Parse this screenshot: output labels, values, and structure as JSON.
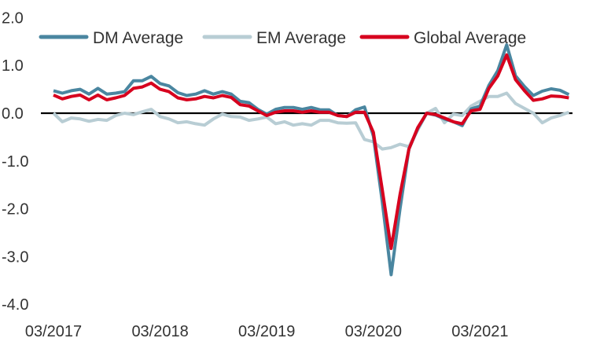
{
  "chart_data": {
    "type": "line",
    "title": "",
    "xlabel": "",
    "ylabel": "",
    "ylim": [
      -4.0,
      2.0
    ],
    "yticks": [
      "2.0",
      "1.0",
      "0.0",
      "-1.0",
      "-2.0",
      "-3.0",
      "-4.0"
    ],
    "ytick_values": [
      2,
      1,
      0,
      -1,
      -2,
      -3,
      -4
    ],
    "xticks": [
      "03/2017",
      "03/2018",
      "03/2019",
      "03/2020",
      "03/2021"
    ],
    "grid": false,
    "zero_line": true,
    "legend_position": "top",
    "x": [
      "03/2017",
      "04/2017",
      "05/2017",
      "06/2017",
      "07/2017",
      "08/2017",
      "09/2017",
      "10/2017",
      "11/2017",
      "12/2017",
      "01/2018",
      "02/2018",
      "03/2018",
      "04/2018",
      "05/2018",
      "06/2018",
      "07/2018",
      "08/2018",
      "09/2018",
      "10/2018",
      "11/2018",
      "12/2018",
      "01/2019",
      "02/2019",
      "03/2019",
      "04/2019",
      "05/2019",
      "06/2019",
      "07/2019",
      "08/2019",
      "09/2019",
      "10/2019",
      "11/2019",
      "12/2019",
      "01/2020",
      "02/2020",
      "03/2020",
      "04/2020",
      "05/2020",
      "06/2020",
      "07/2020",
      "08/2020",
      "09/2020",
      "10/2020",
      "11/2020",
      "12/2020",
      "01/2021",
      "02/2021",
      "03/2021",
      "04/2021",
      "05/2021",
      "06/2021",
      "07/2021",
      "08/2021",
      "09/2021",
      "10/2021",
      "11/2021",
      "12/2021",
      "01/2022"
    ],
    "series": [
      {
        "name": "DM Average",
        "color": "#4a86a0",
        "values": [
          0.47,
          0.42,
          0.47,
          0.5,
          0.4,
          0.52,
          0.4,
          0.42,
          0.45,
          0.68,
          0.68,
          0.77,
          0.62,
          0.57,
          0.43,
          0.37,
          0.4,
          0.47,
          0.4,
          0.45,
          0.4,
          0.25,
          0.22,
          0.08,
          -0.02,
          0.08,
          0.12,
          0.12,
          0.08,
          0.12,
          0.07,
          0.07,
          -0.05,
          -0.07,
          0.07,
          0.13,
          -0.48,
          -1.85,
          -3.38,
          -2.0,
          -0.75,
          -0.32,
          0,
          -0.04,
          -0.12,
          -0.18,
          -0.26,
          0.09,
          0.15,
          0.58,
          0.89,
          1.43,
          0.78,
          0.56,
          0.37,
          0.46,
          0.51,
          0.48,
          0.39
        ]
      },
      {
        "name": "EM Average",
        "color": "#b8cdd4",
        "values": [
          0.0,
          -0.18,
          -0.1,
          -0.12,
          -0.17,
          -0.13,
          -0.15,
          -0.05,
          0.0,
          -0.03,
          0.03,
          0.08,
          -0.07,
          -0.12,
          -0.2,
          -0.18,
          -0.22,
          -0.25,
          -0.12,
          -0.02,
          -0.07,
          -0.08,
          -0.15,
          -0.12,
          -0.08,
          -0.22,
          -0.18,
          -0.25,
          -0.22,
          -0.25,
          -0.15,
          -0.15,
          -0.2,
          -0.21,
          -0.2,
          -0.55,
          -0.6,
          -0.75,
          -0.72,
          -0.65,
          -0.7,
          -0.35,
          0.0,
          0.1,
          -0.2,
          -0.02,
          -0.05,
          0.15,
          0.25,
          0.35,
          0.35,
          0.42,
          0.2,
          0.1,
          0.0,
          -0.2,
          -0.1,
          -0.05,
          0.02
        ]
      },
      {
        "name": "Global Average",
        "color": "#d7001e",
        "values": [
          0.38,
          0.3,
          0.35,
          0.38,
          0.28,
          0.38,
          0.28,
          0.32,
          0.37,
          0.52,
          0.55,
          0.63,
          0.5,
          0.45,
          0.32,
          0.28,
          0.3,
          0.35,
          0.32,
          0.37,
          0.33,
          0.18,
          0.15,
          0.05,
          -0.05,
          0.02,
          0.05,
          0.05,
          0.02,
          0.05,
          0.02,
          0.02,
          -0.05,
          -0.07,
          0.02,
          0.02,
          -0.4,
          -1.6,
          -2.83,
          -1.7,
          -0.75,
          -0.3,
          0,
          -0.03,
          -0.1,
          -0.18,
          -0.22,
          0.05,
          0.08,
          0.52,
          0.78,
          1.22,
          0.7,
          0.47,
          0.27,
          0.3,
          0.36,
          0.35,
          0.32
        ]
      }
    ]
  }
}
